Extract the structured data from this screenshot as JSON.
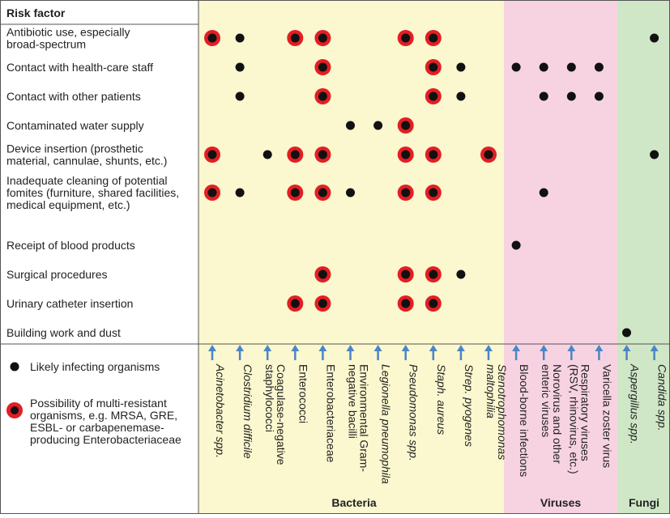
{
  "header": {
    "title": "Risk factor"
  },
  "groups": [
    "Bacteria",
    "Viruses",
    "Fungi"
  ],
  "columns": [
    {
      "lines": [
        "Acinetobacter spp."
      ],
      "italic": true
    },
    {
      "lines": [
        "Clostridium difficile"
      ],
      "italic": true
    },
    {
      "lines": [
        "Coagulase-negative",
        "staphylococci"
      ],
      "italic": false
    },
    {
      "lines": [
        "Enterococci"
      ],
      "italic": false
    },
    {
      "lines": [
        "Enterobacteriaceae"
      ],
      "italic": false
    },
    {
      "lines": [
        "Environmental Gram-",
        "negative bacilli"
      ],
      "italic": false
    },
    {
      "lines": [
        "Legionella pneumophila"
      ],
      "italic": true
    },
    {
      "lines": [
        "Pseudomonas spp."
      ],
      "italic": true
    },
    {
      "lines": [
        "Staph. aureus"
      ],
      "italic": true
    },
    {
      "lines": [
        "Strep. pyogenes"
      ],
      "italic": true
    },
    {
      "lines": [
        "Stenotrophomonas",
        "maltophilia"
      ],
      "italic": true
    },
    {
      "lines": [
        "Blood-borne infections"
      ],
      "italic": false
    },
    {
      "lines": [
        "Norovirus and other",
        "enteric viruses"
      ],
      "italic": false
    },
    {
      "lines": [
        "Respiratory viruses",
        "(RSV, rhinovirus, etc.)"
      ],
      "italic": false
    },
    {
      "lines": [
        "Varicella zoster virus"
      ],
      "italic": false
    },
    {
      "lines": [
        "Aspergillus spp."
      ],
      "italic": true
    },
    {
      "lines": [
        "Candida spp."
      ],
      "italic": true
    }
  ],
  "rows": [
    {
      "lines": [
        "Antibiotic use, especially",
        "broad-spectrum"
      ],
      "cells": [
        2,
        1,
        0,
        2,
        2,
        0,
        0,
        2,
        2,
        0,
        0,
        0,
        0,
        0,
        0,
        0,
        1
      ]
    },
    {
      "lines": [
        "Contact with health-care staff"
      ],
      "cells": [
        0,
        1,
        0,
        0,
        2,
        0,
        0,
        0,
        2,
        1,
        0,
        1,
        1,
        1,
        1,
        0,
        0
      ]
    },
    {
      "lines": [
        "Contact with other patients"
      ],
      "cells": [
        0,
        1,
        0,
        0,
        2,
        0,
        0,
        0,
        2,
        1,
        0,
        0,
        1,
        1,
        1,
        0,
        0
      ]
    },
    {
      "lines": [
        "Contaminated water supply"
      ],
      "cells": [
        0,
        0,
        0,
        0,
        0,
        1,
        1,
        2,
        0,
        0,
        0,
        0,
        0,
        0,
        0,
        0,
        0
      ]
    },
    {
      "lines": [
        "Device insertion (prosthetic",
        "material, cannulae, shunts, etc.)"
      ],
      "cells": [
        2,
        0,
        1,
        2,
        2,
        0,
        0,
        2,
        2,
        0,
        2,
        0,
        0,
        0,
        0,
        0,
        1
      ]
    },
    {
      "lines": [
        "Inadequate cleaning of potential",
        "fomites (furniture, shared facilities,",
        "medical equipment, etc.)"
      ],
      "cells": [
        2,
        1,
        0,
        2,
        2,
        1,
        0,
        2,
        2,
        0,
        0,
        0,
        1,
        0,
        0,
        0,
        0
      ]
    },
    {
      "lines": [
        "Receipt of blood products"
      ],
      "cells": [
        0,
        0,
        0,
        0,
        0,
        0,
        0,
        0,
        0,
        0,
        0,
        1,
        0,
        0,
        0,
        0,
        0
      ]
    },
    {
      "lines": [
        "Surgical procedures"
      ],
      "cells": [
        0,
        0,
        0,
        0,
        2,
        0,
        0,
        2,
        2,
        1,
        0,
        0,
        0,
        0,
        0,
        0,
        0
      ]
    },
    {
      "lines": [
        "Urinary catheter insertion"
      ],
      "cells": [
        0,
        0,
        0,
        2,
        2,
        0,
        0,
        2,
        2,
        0,
        0,
        0,
        0,
        0,
        0,
        0,
        0
      ]
    },
    {
      "lines": [
        "Building work and dust"
      ],
      "cells": [
        0,
        0,
        0,
        0,
        0,
        0,
        0,
        0,
        0,
        0,
        0,
        0,
        0,
        0,
        0,
        1,
        0
      ]
    }
  ],
  "legend": [
    {
      "lines": [
        "Likely infecting organisms"
      ]
    },
    {
      "lines": [
        "Possibility of multi-resistant",
        "organisms, e.g. MRSA, GRE,",
        "ESBL- or carbapenemase-",
        "producing Enterobacteriaceae"
      ]
    }
  ]
}
